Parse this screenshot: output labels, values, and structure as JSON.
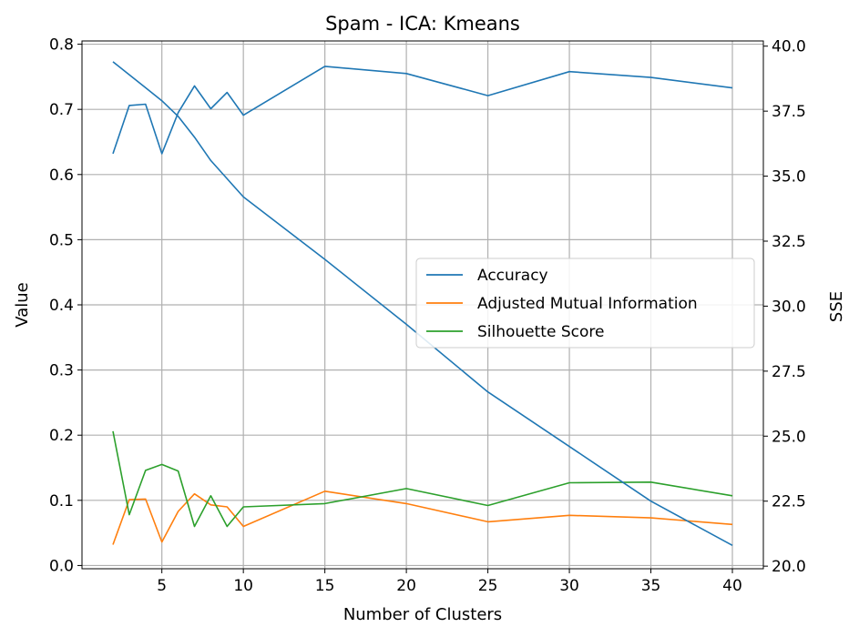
{
  "chart_data": {
    "type": "line",
    "title": "Spam - ICA: Kmeans",
    "xlabel": "Number of Clusters",
    "ylabel": "Value",
    "y2label": "SSE",
    "xlim": [
      0.1,
      41.9
    ],
    "ylim": [
      -0.005,
      0.805
    ],
    "y2lim": [
      19.9,
      40.2
    ],
    "x_ticks": [
      5,
      10,
      15,
      20,
      25,
      30,
      35,
      40
    ],
    "y_ticks": [
      0.0,
      0.1,
      0.2,
      0.3,
      0.4,
      0.5,
      0.6,
      0.7,
      0.8
    ],
    "y2_ticks": [
      20.0,
      22.5,
      25.0,
      27.5,
      30.0,
      32.5,
      35.0,
      37.5,
      40.0
    ],
    "grid": true,
    "legend_position": "center-right",
    "x": [
      2,
      3,
      4,
      5,
      6,
      7,
      8,
      9,
      10,
      15,
      20,
      25,
      30,
      35,
      40
    ],
    "series": [
      {
        "name": "Accuracy",
        "axis": "left",
        "color": "#1f77b4",
        "in_legend": true,
        "values": [
          0.632,
          0.706,
          0.708,
          0.632,
          0.695,
          0.736,
          0.701,
          0.726,
          0.691,
          0.766,
          0.755,
          0.721,
          0.758,
          0.749,
          0.733
        ]
      },
      {
        "name": "Adjusted Mutual Information",
        "axis": "left",
        "color": "#ff7f0e",
        "in_legend": true,
        "values": [
          0.032,
          0.101,
          0.102,
          0.036,
          0.083,
          0.11,
          0.093,
          0.09,
          0.06,
          0.114,
          0.095,
          0.067,
          0.077,
          0.073,
          0.063
        ]
      },
      {
        "name": "Silhouette Score",
        "axis": "left",
        "color": "#2ca02c",
        "in_legend": true,
        "values": [
          0.206,
          0.078,
          0.146,
          0.155,
          0.145,
          0.06,
          0.107,
          0.06,
          0.09,
          0.095,
          0.118,
          0.092,
          0.127,
          0.128,
          0.107
        ]
      },
      {
        "name": "SSE",
        "axis": "right",
        "color": "#1f77b4",
        "in_legend": false,
        "values": [
          39.4,
          38.9,
          38.4,
          37.9,
          37.3,
          36.5,
          35.6,
          34.9,
          34.2,
          31.8,
          29.3,
          26.7,
          24.6,
          22.5,
          20.8
        ]
      }
    ]
  }
}
